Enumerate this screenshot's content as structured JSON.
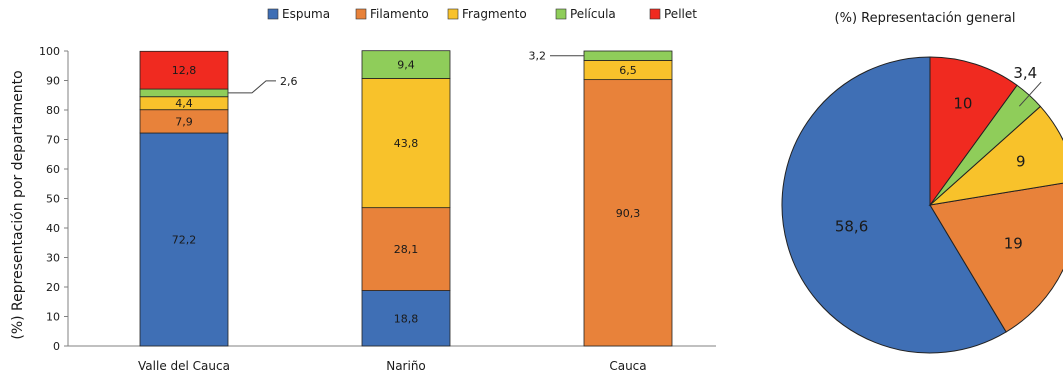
{
  "chart_data": [
    {
      "type": "bar",
      "stacked": true,
      "title": "",
      "xlabel": "",
      "ylabel": "(%) Representación por departamento",
      "ylim": [
        0,
        100
      ],
      "yticks": [
        0,
        10,
        20,
        30,
        40,
        50,
        60,
        70,
        80,
        90,
        100
      ],
      "categories": [
        "Valle del Cauca",
        "Nariño",
        "Cauca"
      ],
      "legend": {
        "position": "top",
        "entries": [
          "Espuma",
          "Filamento",
          "Fragmento",
          "Película",
          "Pellet"
        ]
      },
      "series": [
        {
          "name": "Espuma",
          "color": "#3f6fb5",
          "values": [
            72.2,
            18.8,
            0
          ],
          "labels": [
            "72,2",
            "18,8",
            ""
          ]
        },
        {
          "name": "Filamento",
          "color": "#e8823a",
          "values": [
            7.9,
            28.1,
            90.3
          ],
          "labels": [
            "7,9",
            "28,1",
            "90,3"
          ]
        },
        {
          "name": "Fragmento",
          "color": "#f8c22b",
          "values": [
            4.4,
            43.8,
            6.5
          ],
          "labels": [
            "4,4",
            "43,8",
            "6,5"
          ]
        },
        {
          "name": "Película",
          "color": "#8fcd5a",
          "values": [
            2.6,
            9.4,
            3.2
          ],
          "labels": [
            "2,6",
            "9,4",
            "3,2"
          ]
        },
        {
          "name": "Pellet",
          "color": "#f02a20",
          "values": [
            12.8,
            0,
            0
          ],
          "labels": [
            "12,8",
            "",
            ""
          ]
        }
      ],
      "callouts": [
        {
          "category": "Valle del Cauca",
          "series": "Película",
          "text": "2,6",
          "side": "right"
        },
        {
          "category": "Cauca",
          "series": "Película",
          "text": "3,2",
          "side": "left"
        }
      ],
      "grid": false
    },
    {
      "type": "pie",
      "title": "(%) Representación general",
      "slices": [
        {
          "name": "Espuma",
          "value": 58.6,
          "label": "58,6",
          "color": "#3f6fb5"
        },
        {
          "name": "Filamento",
          "value": 19,
          "label": "19",
          "color": "#e8823a"
        },
        {
          "name": "Fragmento",
          "value": 9,
          "label": "9",
          "color": "#f8c22b"
        },
        {
          "name": "Película",
          "value": 3.4,
          "label": "3,4",
          "color": "#8fcd5a"
        },
        {
          "name": "Pellet",
          "value": 10,
          "label": "10",
          "color": "#f02a20"
        }
      ],
      "start": "top",
      "direction": "counterclockwise"
    }
  ]
}
